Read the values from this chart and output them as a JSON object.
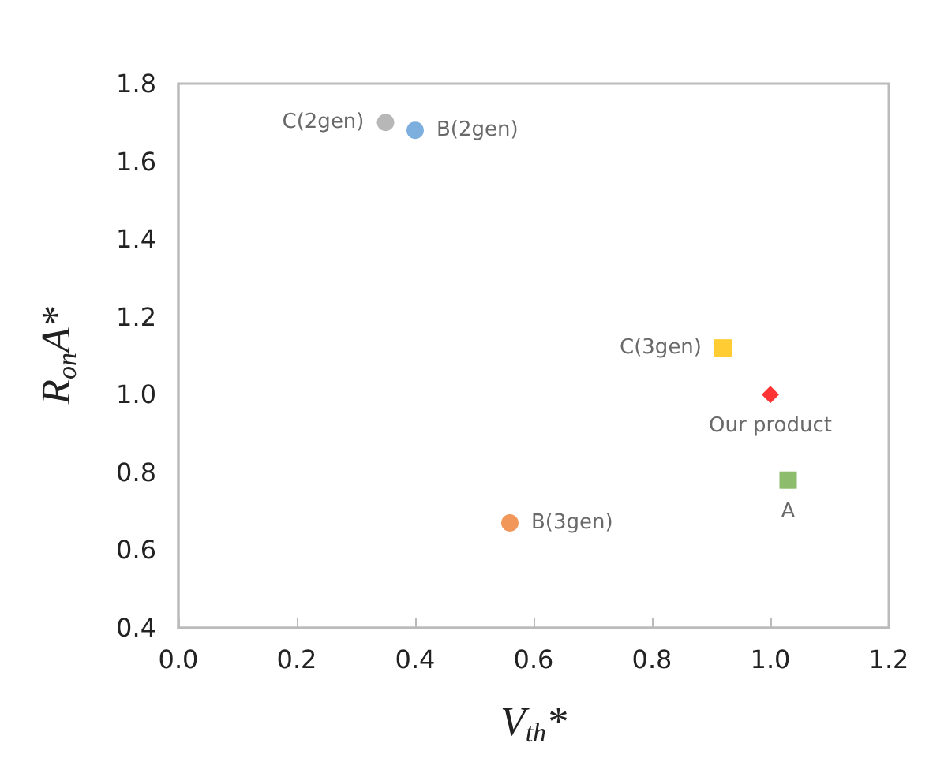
{
  "chart_data": {
    "type": "scatter",
    "xlabel": "V$_{th}$*",
    "ylabel": "R$_{on}$A*",
    "xlim": [
      0,
      1.2
    ],
    "xticks": [
      {
        "value": 0,
        "label": "0.0"
      },
      0.2,
      0.4,
      0.6,
      0.8,
      {
        "value": 1,
        "label": "1.0"
      },
      {
        "value": 1.2,
        "label": "1.2"
      }
    ],
    "ylim": [
      0.4,
      1.8
    ],
    "yticks": [
      0.4,
      0.6,
      0.8,
      {
        "value": 1,
        "label": "1.0"
      },
      1.2,
      1.4,
      1.6,
      1.8
    ],
    "grid": false,
    "legend": false,
    "series": [
      {
        "name": "C(2gen)",
        "color": "#a5a5a5",
        "marker": "circle",
        "x": [
          0.35
        ],
        "values": [
          1.7
        ]
      },
      {
        "name": "B(2gen)",
        "color": "#5b9bd5",
        "marker": "circle",
        "x": [
          0.4
        ],
        "values": [
          1.68
        ]
      },
      {
        "name": "C(3gen)",
        "color": "#ffc000",
        "marker": "square",
        "x": [
          0.92
        ],
        "values": [
          1.12
        ]
      },
      {
        "name": "Our product",
        "color": "#ff0000",
        "marker": "diamond",
        "x": [
          1.0
        ],
        "values": [
          1.0
        ]
      },
      {
        "name": "A",
        "color": "#70ad47",
        "marker": "square",
        "x": [
          1.03
        ],
        "values": [
          0.78
        ]
      },
      {
        "name": "B(3gen)",
        "color": "#ed7d31",
        "marker": "circle",
        "x": [
          0.56
        ],
        "values": [
          0.67
        ]
      }
    ]
  }
}
